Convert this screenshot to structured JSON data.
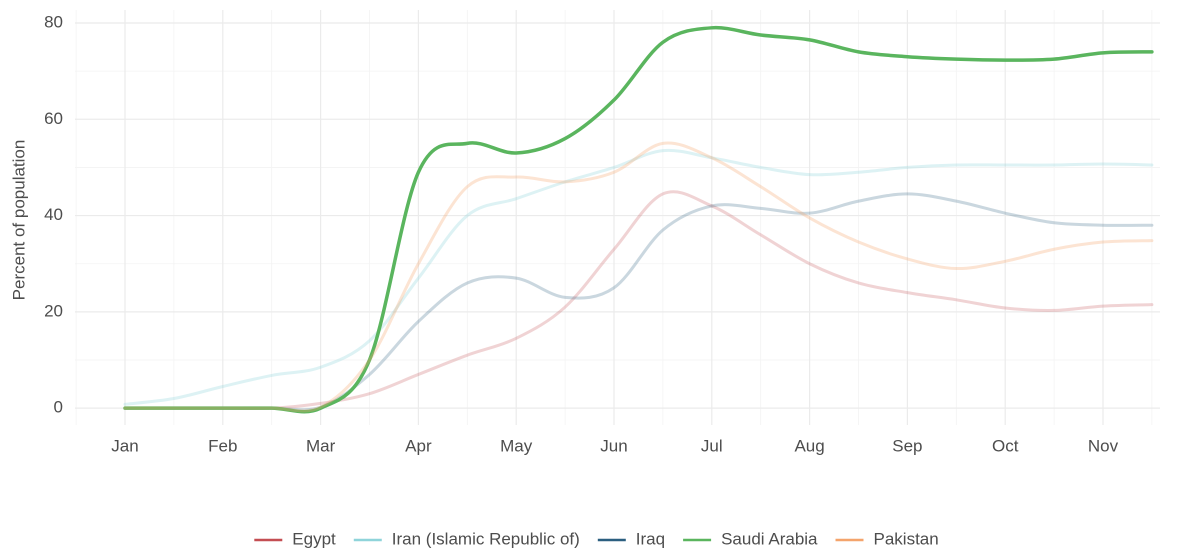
{
  "chart_data": {
    "type": "line",
    "y_label": "Percent of population",
    "categories": [
      "Jan",
      null,
      "Feb",
      null,
      "Mar",
      null,
      "Apr",
      null,
      "May",
      null,
      "Jun",
      null,
      "Jul",
      null,
      "Aug",
      null,
      "Sep",
      null,
      "Oct",
      null,
      "Nov",
      null
    ],
    "series": [
      {
        "name": "Egypt",
        "color": "#c44e52",
        "opacity": 0.25,
        "values": [
          0,
          0,
          0,
          0,
          1,
          3,
          7,
          11,
          14.5,
          21,
          33,
          44.5,
          42,
          36,
          30,
          26,
          24,
          22.5,
          20.8,
          20.3,
          21.2,
          21.5
        ]
      },
      {
        "name": "Iran (Islamic Republic of)",
        "color": "#8fd4da",
        "opacity": 0.3,
        "values": [
          0.8,
          2,
          4.5,
          6.8,
          8.5,
          14,
          27,
          40,
          43.5,
          47,
          50,
          53.5,
          52,
          50,
          48.5,
          49,
          50,
          50.5,
          50.5,
          50.5,
          50.7,
          50.5
        ]
      },
      {
        "name": "Iraq",
        "color": "#2b5f80",
        "opacity": 0.25,
        "values": [
          0,
          0,
          0,
          0,
          0.2,
          7,
          18,
          26,
          27,
          23,
          25,
          37,
          42,
          41.5,
          40.5,
          43,
          44.5,
          43,
          40.5,
          38.5,
          38,
          38
        ]
      },
      {
        "name": "Saudi Arabia",
        "color": "#5ab55e",
        "opacity": 1,
        "values": [
          0,
          0,
          0,
          0,
          0,
          10,
          49,
          55,
          53,
          56,
          64,
          76,
          79,
          77.5,
          76.5,
          74,
          73,
          72.5,
          72.3,
          72.5,
          73.8,
          74
        ]
      },
      {
        "name": "Pakistan",
        "color": "#f4a46c",
        "opacity": 0.3,
        "values": [
          0,
          0,
          0,
          0,
          0.2,
          10,
          30,
          46,
          48,
          47,
          49,
          55,
          52,
          46,
          39.5,
          34.5,
          31,
          29,
          30.5,
          33,
          34.5,
          34.8
        ]
      }
    ],
    "ylim": [
      -3.5,
      82.7
    ],
    "yticks": [
      0,
      20,
      40,
      60,
      80
    ],
    "grid": true
  }
}
